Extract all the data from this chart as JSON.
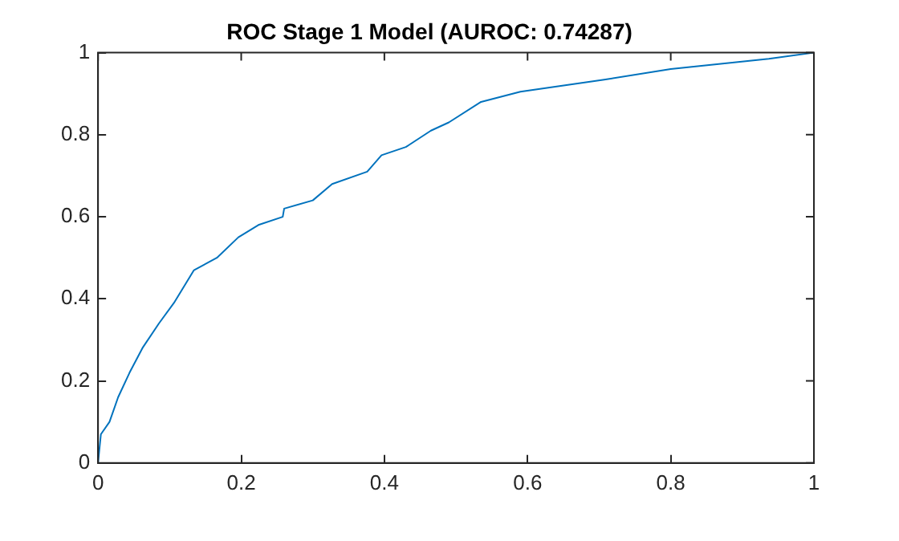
{
  "chart_data": {
    "type": "line",
    "title": "ROC Stage 1 Model (AUROC: 0.74287)",
    "x": [
      0,
      0.004,
      0.016,
      0.028,
      0.044,
      0.062,
      0.085,
      0.106,
      0.134,
      0.166,
      0.196,
      0.224,
      0.258,
      0.26,
      0.3,
      0.327,
      0.376,
      0.396,
      0.43,
      0.465,
      0.49,
      0.535,
      0.59,
      0.707,
      0.8,
      0.937,
      1
    ],
    "series": [
      {
        "color": "#0072bd",
        "values": [
          0,
          0.07,
          0.1,
          0.16,
          0.22,
          0.28,
          0.34,
          0.39,
          0.47,
          0.5,
          0.55,
          0.58,
          0.6,
          0.62,
          0.64,
          0.68,
          0.71,
          0.75,
          0.77,
          0.81,
          0.83,
          0.88,
          0.905,
          0.934,
          0.96,
          0.985,
          1
        ]
      }
    ],
    "xlim": [
      0,
      1
    ],
    "ylim": [
      0,
      1
    ],
    "xticks": [
      0,
      0.2,
      0.4,
      0.6,
      0.8,
      1
    ],
    "yticks": [
      0,
      0.2,
      0.4,
      0.6,
      0.8,
      1
    ],
    "grid": false,
    "legend": false,
    "marker": "none",
    "line_style": "solid"
  }
}
